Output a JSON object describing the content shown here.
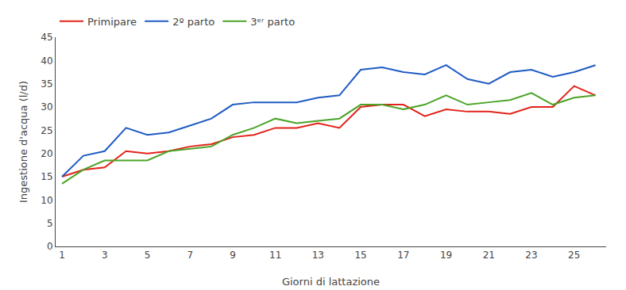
{
  "chart_data": {
    "type": "line",
    "x": [
      1,
      2,
      3,
      4,
      5,
      6,
      7,
      8,
      9,
      10,
      11,
      12,
      13,
      14,
      15,
      16,
      17,
      18,
      19,
      20,
      21,
      22,
      23,
      24,
      25,
      26
    ],
    "series": [
      {
        "name": "Primipare",
        "color": "#e2231a",
        "values": [
          15.0,
          16.5,
          17.0,
          20.5,
          20.0,
          20.5,
          21.5,
          22.0,
          23.5,
          24.0,
          25.5,
          25.5,
          26.5,
          25.5,
          30.0,
          30.5,
          30.5,
          28.0,
          29.5,
          29.0,
          29.0,
          28.5,
          30.0,
          30.0,
          34.5,
          32.5
        ]
      },
      {
        "name": "2º parto",
        "color": "#1f5bc4",
        "values": [
          15.0,
          19.5,
          20.5,
          25.5,
          24.0,
          24.5,
          26.0,
          27.5,
          30.5,
          31.0,
          31.0,
          31.0,
          32.0,
          32.5,
          38.0,
          38.5,
          37.5,
          37.0,
          39.0,
          36.0,
          35.0,
          37.5,
          38.0,
          36.5,
          37.5,
          39.0
        ]
      },
      {
        "name": "3ᵉʳ parto",
        "color": "#4ba327",
        "values": [
          13.5,
          16.5,
          18.5,
          18.5,
          18.5,
          20.5,
          21.0,
          21.5,
          24.0,
          25.5,
          27.5,
          26.5,
          27.0,
          27.5,
          30.5,
          30.5,
          29.5,
          30.5,
          32.5,
          30.5,
          31.0,
          31.5,
          33.0,
          30.5,
          32.0,
          32.5
        ]
      }
    ],
    "xlabel": "Giorni di lattazione",
    "ylabel": "Ingestione d'acqua (l/d)",
    "xlim": [
      0.7,
      26.5
    ],
    "xticks": [
      1,
      3,
      5,
      7,
      9,
      11,
      13,
      15,
      17,
      19,
      21,
      23,
      25
    ],
    "ylim": [
      0,
      45
    ],
    "yticks": [
      0,
      5,
      10,
      15,
      20,
      25,
      30,
      35,
      40,
      45
    ],
    "grid": false,
    "legend": "top"
  }
}
